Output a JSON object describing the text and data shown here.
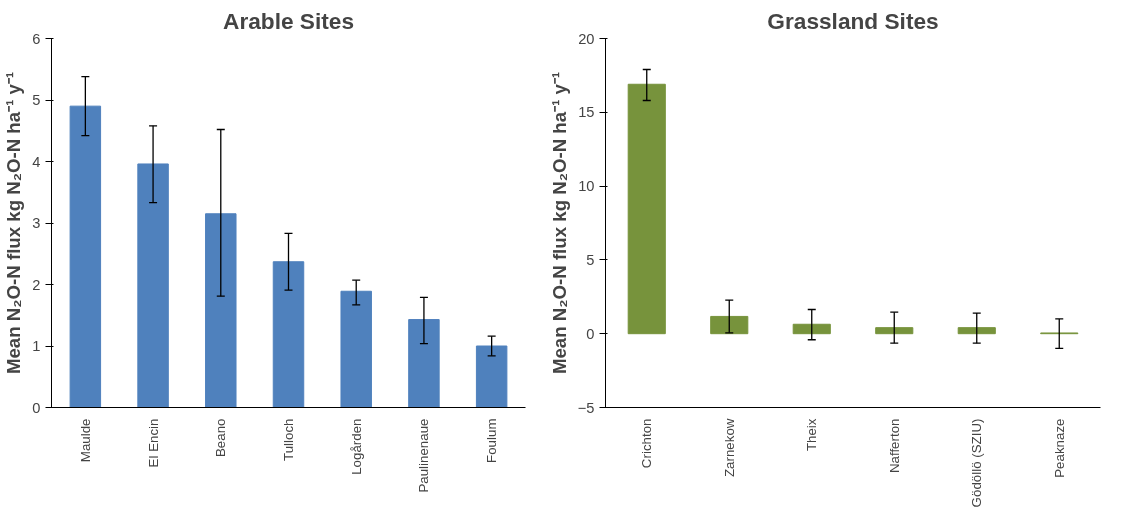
{
  "chart_data": [
    {
      "type": "bar",
      "title": "Arable Sites",
      "ylabel": "Mean N₂O-N flux kg N₂O-N ha⁻¹ y⁻¹",
      "categories": [
        "Maulde",
        "El Encin",
        "Beano",
        "Tulloch",
        "Logården",
        "Paulinenaue",
        "Foulum"
      ],
      "values": [
        4.9,
        3.96,
        3.15,
        2.37,
        1.89,
        1.43,
        1.0
      ],
      "color": "#4f81bd",
      "errors": [
        [
          4.42,
          5.38
        ],
        [
          3.33,
          4.58
        ],
        [
          1.81,
          4.52
        ],
        [
          1.91,
          2.83
        ],
        [
          1.67,
          2.07
        ],
        [
          1.04,
          1.79
        ],
        [
          0.84,
          1.16
        ]
      ],
      "ylim": [
        0,
        6
      ],
      "yticks": [
        0,
        1,
        2,
        3,
        4,
        5,
        6
      ],
      "grid": false
    },
    {
      "type": "bar",
      "title": "Grassland Sites",
      "ylabel": "Mean N₂O-N flux kg N₂O-N ha⁻¹ y⁻¹",
      "categories": [
        "Crichton",
        "Zarnekow",
        "Theix",
        "Nafferton",
        "Gödöllö (SZIU)",
        "Peaknaze"
      ],
      "values": [
        16.9,
        1.17,
        0.64,
        0.41,
        0.41,
        0.05
      ],
      "color": "#77933c",
      "errors": [
        [
          15.8,
          17.9
        ],
        [
          0.06,
          2.28
        ],
        [
          -0.41,
          1.64
        ],
        [
          -0.64,
          1.46
        ],
        [
          -0.64,
          1.4
        ],
        [
          -1.0,
          1.0
        ]
      ],
      "ylim": [
        -5,
        20
      ],
      "yticks": [
        -5,
        0,
        5,
        10,
        15,
        20
      ],
      "grid": false
    }
  ]
}
